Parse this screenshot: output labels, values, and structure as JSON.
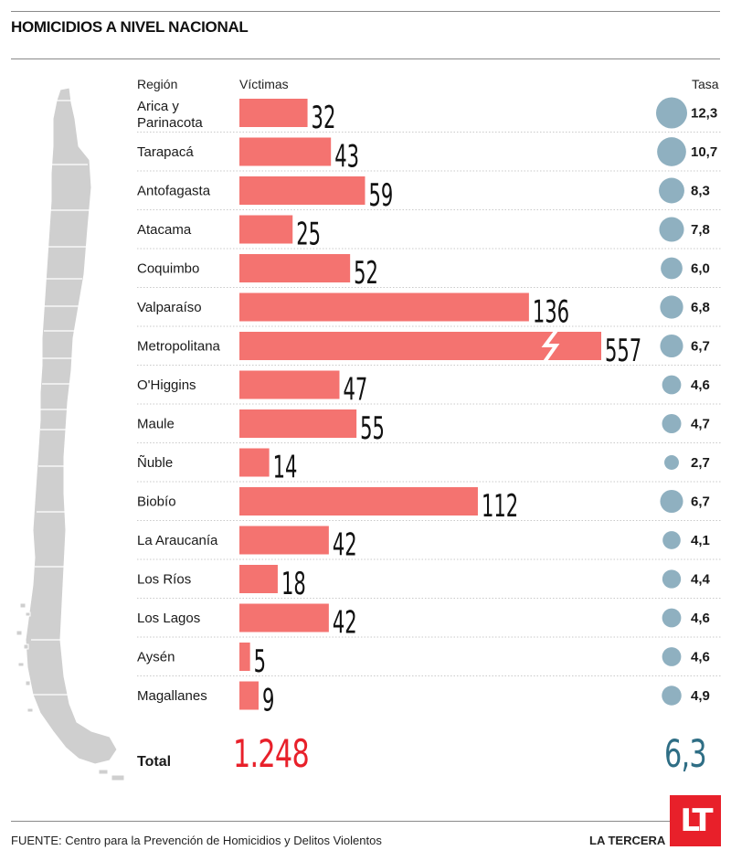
{
  "title": "HOMICIDIOS A NIVEL NACIONAL",
  "headers": {
    "region": "Región",
    "victims": "Víctimas",
    "rate": "Tasa"
  },
  "colors": {
    "bar": "#f47370",
    "bubble": "#8fb0c0",
    "total_victims": "#e8202a",
    "total_rate": "#2f6e85",
    "map": "#cfcfcf"
  },
  "chart_data": {
    "type": "bar",
    "orientation": "horizontal",
    "categories": [
      "Arica y Parinacota",
      "Tarapacá",
      "Antofagasta",
      "Atacama",
      "Coquimbo",
      "Valparaíso",
      "Metropolitana",
      "O'Higgins",
      "Maule",
      "Ñuble",
      "Biobío",
      "La Araucanía",
      "Los Ríos",
      "Los Lagos",
      "Aysén",
      "Magallanes"
    ],
    "category_lines": [
      [
        "Arica y",
        "Parinacota"
      ],
      [
        "Tarapacá"
      ],
      [
        "Antofagasta"
      ],
      [
        "Atacama"
      ],
      [
        "Coquimbo"
      ],
      [
        "Valparaíso"
      ],
      [
        "Metropolitana"
      ],
      [
        "O'Higgins"
      ],
      [
        "Maule"
      ],
      [
        "Ñuble"
      ],
      [
        "Biobío"
      ],
      [
        "La Araucanía"
      ],
      [
        "Los Ríos"
      ],
      [
        "Los Lagos"
      ],
      [
        "Aysén"
      ],
      [
        "Magallanes"
      ]
    ],
    "series": [
      {
        "name": "Víctimas",
        "values": [
          32,
          43,
          59,
          25,
          52,
          136,
          557,
          47,
          55,
          14,
          112,
          42,
          18,
          42,
          5,
          9
        ]
      },
      {
        "name": "Tasa",
        "values": [
          12.3,
          10.7,
          8.3,
          7.8,
          6.0,
          6.8,
          6.7,
          4.6,
          4.7,
          2.7,
          6.7,
          4.1,
          4.4,
          4.6,
          4.6,
          4.9
        ],
        "labels": [
          "12,3",
          "10,7",
          "8,3",
          "7,8",
          "6,0",
          "6,8",
          "6,7",
          "4,6",
          "4,7",
          "2,7",
          "6,7",
          "4,1",
          "4,4",
          "4,6",
          "4,6",
          "4,9"
        ]
      }
    ],
    "broken_axis_category": "Metropolitana",
    "total": {
      "label": "Total",
      "victims": "1.248",
      "rate": "6,3"
    }
  },
  "source": "FUENTE: Centro para la Prevención de Homicidios y Delitos Violentos",
  "brand": "LA TERCERA",
  "logo_text": "LT"
}
